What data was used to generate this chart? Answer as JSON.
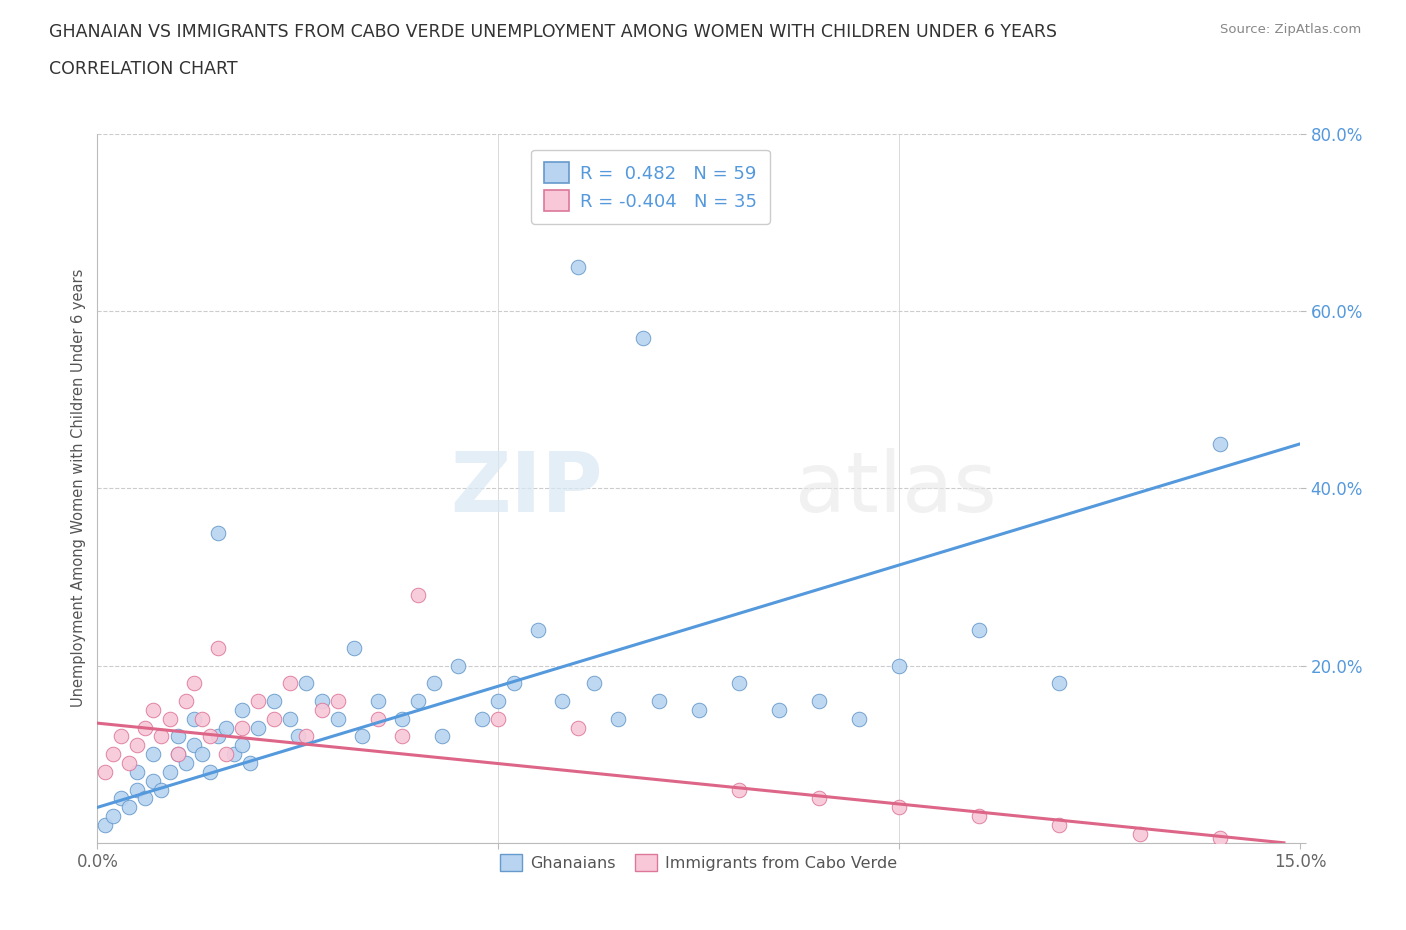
{
  "title_line1": "GHANAIAN VS IMMIGRANTS FROM CABO VERDE UNEMPLOYMENT AMONG WOMEN WITH CHILDREN UNDER 6 YEARS",
  "title_line2": "CORRELATION CHART",
  "source": "Source: ZipAtlas.com",
  "ylabel": "Unemployment Among Women with Children Under 6 years",
  "xlim": [
    0.0,
    0.15
  ],
  "ylim": [
    0.0,
    0.8
  ],
  "R_blue": 0.482,
  "N_blue": 59,
  "R_pink": -0.404,
  "N_pink": 35,
  "blue_color": "#b8d4f0",
  "blue_edge": "#6699cc",
  "pink_color": "#f8c8d8",
  "pink_edge": "#dd7799",
  "blue_line_color": "#5599dd",
  "pink_line_color": "#dd6688",
  "watermark_zip": "ZIP",
  "watermark_atlas": "atlas",
  "legend_label_blue": "Ghanaians",
  "legend_label_pink": "Immigrants from Cabo Verde",
  "blue_x": [
    0.001,
    0.002,
    0.003,
    0.004,
    0.005,
    0.005,
    0.006,
    0.007,
    0.007,
    0.008,
    0.009,
    0.01,
    0.01,
    0.011,
    0.012,
    0.012,
    0.013,
    0.014,
    0.015,
    0.015,
    0.016,
    0.017,
    0.018,
    0.018,
    0.019,
    0.02,
    0.022,
    0.024,
    0.025,
    0.026,
    0.028,
    0.03,
    0.032,
    0.033,
    0.035,
    0.038,
    0.04,
    0.042,
    0.043,
    0.045,
    0.048,
    0.05,
    0.052,
    0.055,
    0.058,
    0.06,
    0.062,
    0.065,
    0.068,
    0.07,
    0.075,
    0.08,
    0.085,
    0.09,
    0.095,
    0.1,
    0.11,
    0.12,
    0.14
  ],
  "blue_y": [
    0.02,
    0.03,
    0.05,
    0.04,
    0.06,
    0.08,
    0.05,
    0.07,
    0.1,
    0.06,
    0.08,
    0.1,
    0.12,
    0.09,
    0.11,
    0.14,
    0.1,
    0.08,
    0.12,
    0.35,
    0.13,
    0.1,
    0.15,
    0.11,
    0.09,
    0.13,
    0.16,
    0.14,
    0.12,
    0.18,
    0.16,
    0.14,
    0.22,
    0.12,
    0.16,
    0.14,
    0.16,
    0.18,
    0.12,
    0.2,
    0.14,
    0.16,
    0.18,
    0.24,
    0.16,
    0.65,
    0.18,
    0.14,
    0.57,
    0.16,
    0.15,
    0.18,
    0.15,
    0.16,
    0.14,
    0.2,
    0.24,
    0.18,
    0.45
  ],
  "pink_x": [
    0.001,
    0.002,
    0.003,
    0.004,
    0.005,
    0.006,
    0.007,
    0.008,
    0.009,
    0.01,
    0.011,
    0.012,
    0.013,
    0.014,
    0.015,
    0.016,
    0.018,
    0.02,
    0.022,
    0.024,
    0.026,
    0.028,
    0.03,
    0.035,
    0.038,
    0.04,
    0.05,
    0.06,
    0.08,
    0.09,
    0.1,
    0.11,
    0.12,
    0.13,
    0.14
  ],
  "pink_y": [
    0.08,
    0.1,
    0.12,
    0.09,
    0.11,
    0.13,
    0.15,
    0.12,
    0.14,
    0.1,
    0.16,
    0.18,
    0.14,
    0.12,
    0.22,
    0.1,
    0.13,
    0.16,
    0.14,
    0.18,
    0.12,
    0.15,
    0.16,
    0.14,
    0.12,
    0.28,
    0.14,
    0.13,
    0.06,
    0.05,
    0.04,
    0.03,
    0.02,
    0.01,
    0.005
  ],
  "blue_line_x": [
    0.0,
    0.15
  ],
  "blue_line_y": [
    0.04,
    0.45
  ],
  "pink_line_x": [
    0.0,
    0.148
  ],
  "pink_line_y": [
    0.135,
    0.0
  ]
}
